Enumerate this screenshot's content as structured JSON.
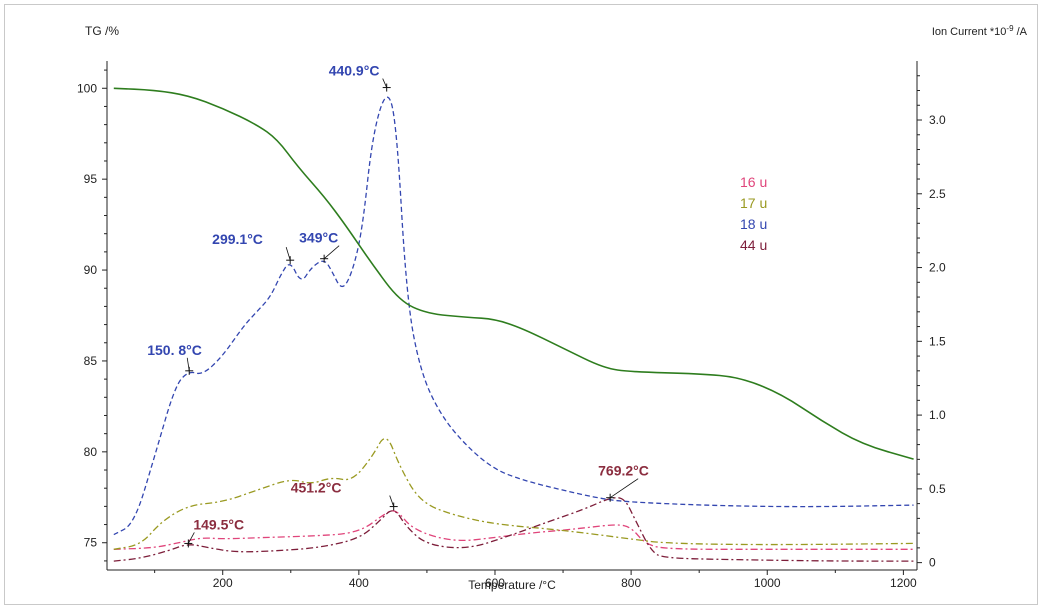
{
  "chart_data": {
    "type": "line",
    "xlabel": "Temperature /°C",
    "ylabel_left": "TG /%",
    "ylabel_right": "Ion Current *10",
    "ylabel_right_exp": "-9",
    "ylabel_right_unit": " /A",
    "xlim": [
      30,
      1220
    ],
    "ylim_left": [
      73.5,
      101.5
    ],
    "ylim_right": [
      -0.05,
      3.4
    ],
    "x_ticks": [
      "200",
      "400",
      "600",
      "800",
      "1000",
      "1200"
    ],
    "y_left_ticks": [
      "75",
      "80",
      "85",
      "90",
      "95",
      "100"
    ],
    "y_right_ticks": [
      "0",
      "0.5",
      "1.0",
      "1.5",
      "2.0",
      "2.5",
      "3.0"
    ],
    "grid": false,
    "legend_position": "right",
    "colors": {
      "tg": "#2e7d1e",
      "u16": "#e0457b",
      "u17": "#9a9a22",
      "u18": "#3346b0",
      "u44": "#7d1e3a",
      "u44_peak_label": "#8b2d3f"
    },
    "series": [
      {
        "name": "TG",
        "axis": "left",
        "color": "#2e7d1e",
        "dash": "solid",
        "points": [
          [
            40,
            100
          ],
          [
            100,
            99.9
          ],
          [
            150,
            99.6
          ],
          [
            200,
            98.9
          ],
          [
            250,
            98.0
          ],
          [
            280,
            97.2
          ],
          [
            310,
            95.7
          ],
          [
            350,
            94.0
          ],
          [
            380,
            92.5
          ],
          [
            420,
            90.3
          ],
          [
            460,
            88.3
          ],
          [
            500,
            87.6
          ],
          [
            560,
            87.4
          ],
          [
            600,
            87.3
          ],
          [
            640,
            86.8
          ],
          [
            700,
            85.7
          ],
          [
            760,
            84.6
          ],
          [
            800,
            84.4
          ],
          [
            900,
            84.3
          ],
          [
            960,
            84.1
          ],
          [
            1020,
            83.2
          ],
          [
            1080,
            81.7
          ],
          [
            1140,
            80.4
          ],
          [
            1215,
            79.6
          ]
        ]
      },
      {
        "name": "16 u",
        "axis": "right",
        "color": "#e0457b",
        "dash": "dashdot",
        "points": [
          [
            40,
            0.09
          ],
          [
            100,
            0.1
          ],
          [
            140,
            0.14
          ],
          [
            170,
            0.17
          ],
          [
            200,
            0.16
          ],
          [
            260,
            0.17
          ],
          [
            330,
            0.18
          ],
          [
            400,
            0.2
          ],
          [
            440,
            0.34
          ],
          [
            455,
            0.36
          ],
          [
            480,
            0.22
          ],
          [
            540,
            0.14
          ],
          [
            600,
            0.17
          ],
          [
            650,
            0.2
          ],
          [
            700,
            0.22
          ],
          [
            740,
            0.24
          ],
          [
            780,
            0.26
          ],
          [
            800,
            0.24
          ],
          [
            820,
            0.13
          ],
          [
            850,
            0.09
          ],
          [
            1000,
            0.09
          ],
          [
            1215,
            0.09
          ]
        ]
      },
      {
        "name": "17 u",
        "axis": "right",
        "color": "#9a9a22",
        "dash": "dashdot",
        "points": [
          [
            40,
            0.09
          ],
          [
            80,
            0.12
          ],
          [
            110,
            0.28
          ],
          [
            150,
            0.39
          ],
          [
            200,
            0.41
          ],
          [
            250,
            0.49
          ],
          [
            300,
            0.57
          ],
          [
            330,
            0.53
          ],
          [
            360,
            0.58
          ],
          [
            390,
            0.55
          ],
          [
            420,
            0.72
          ],
          [
            440,
            0.89
          ],
          [
            460,
            0.65
          ],
          [
            490,
            0.41
          ],
          [
            540,
            0.32
          ],
          [
            600,
            0.26
          ],
          [
            700,
            0.22
          ],
          [
            800,
            0.16
          ],
          [
            850,
            0.13
          ],
          [
            1000,
            0.12
          ],
          [
            1215,
            0.13
          ]
        ]
      },
      {
        "name": "18 u",
        "axis": "right",
        "color": "#3346b0",
        "dash": "dashed",
        "points": [
          [
            40,
            0.19
          ],
          [
            70,
            0.26
          ],
          [
            100,
            0.72
          ],
          [
            130,
            1.2
          ],
          [
            150,
            1.3
          ],
          [
            170,
            1.27
          ],
          [
            200,
            1.4
          ],
          [
            230,
            1.6
          ],
          [
            250,
            1.7
          ],
          [
            270,
            1.8
          ],
          [
            285,
            1.95
          ],
          [
            299,
            2.05
          ],
          [
            315,
            1.89
          ],
          [
            330,
            2.0
          ],
          [
            349,
            2.06
          ],
          [
            360,
            1.98
          ],
          [
            375,
            1.84
          ],
          [
            390,
            1.96
          ],
          [
            405,
            2.25
          ],
          [
            420,
            2.9
          ],
          [
            440.9,
            3.22
          ],
          [
            455,
            3.0
          ],
          [
            470,
            1.8
          ],
          [
            490,
            1.3
          ],
          [
            520,
            1.0
          ],
          [
            560,
            0.78
          ],
          [
            600,
            0.63
          ],
          [
            640,
            0.56
          ],
          [
            700,
            0.49
          ],
          [
            760,
            0.43
          ],
          [
            800,
            0.41
          ],
          [
            900,
            0.39
          ],
          [
            1000,
            0.38
          ],
          [
            1100,
            0.38
          ],
          [
            1215,
            0.39
          ]
        ]
      },
      {
        "name": "44 u",
        "axis": "right",
        "color": "#7d1e3a",
        "dash": "dashdot",
        "points": [
          [
            40,
            0.01
          ],
          [
            80,
            0.03
          ],
          [
            120,
            0.08
          ],
          [
            149.5,
            0.13
          ],
          [
            180,
            0.1
          ],
          [
            220,
            0.07
          ],
          [
            280,
            0.08
          ],
          [
            340,
            0.1
          ],
          [
            400,
            0.16
          ],
          [
            430,
            0.28
          ],
          [
            451.2,
            0.38
          ],
          [
            470,
            0.24
          ],
          [
            500,
            0.12
          ],
          [
            560,
            0.09
          ],
          [
            620,
            0.18
          ],
          [
            680,
            0.28
          ],
          [
            730,
            0.36
          ],
          [
            769.2,
            0.44
          ],
          [
            790,
            0.44
          ],
          [
            805,
            0.3
          ],
          [
            830,
            0.07
          ],
          [
            850,
            0.03
          ],
          [
            950,
            0.02
          ],
          [
            1100,
            0.01
          ],
          [
            1215,
            0.01
          ]
        ]
      }
    ],
    "annotations": [
      {
        "text": "440.9°C",
        "x": 440.9,
        "y": 3.22,
        "color": "#3346b0"
      },
      {
        "text": "299.1°C",
        "x": 299.1,
        "y": 2.05,
        "color": "#3346b0"
      },
      {
        "text": "349°C",
        "x": 349,
        "y": 2.06,
        "color": "#3346b0"
      },
      {
        "text": "150. 8°C",
        "x": 150.8,
        "y": 1.3,
        "color": "#3346b0"
      },
      {
        "text": "149.5°C",
        "x": 149.5,
        "y": 0.13,
        "color": "#8b2d3f"
      },
      {
        "text": "451.2°C",
        "x": 451.2,
        "y": 0.38,
        "color": "#8b2d3f"
      },
      {
        "text": "769.2°C",
        "x": 769.2,
        "y": 0.44,
        "color": "#8b2d3f"
      }
    ],
    "legend": [
      "16 u",
      "17 u",
      "18 u",
      "44 u"
    ]
  }
}
